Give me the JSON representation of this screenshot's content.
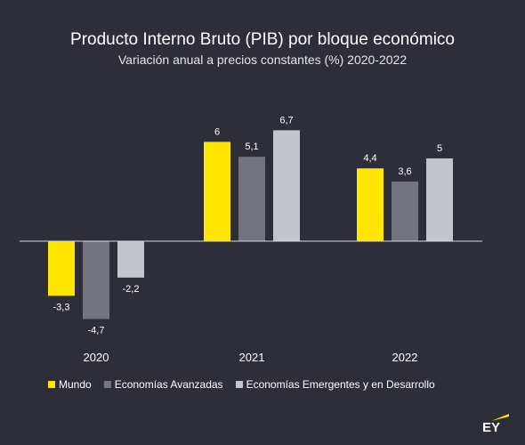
{
  "chart_data": {
    "type": "bar",
    "title": "Producto Interno Bruto (PIB) por bloque económico",
    "subtitle": "Variación anual a precios constantes (%) 2020-2022",
    "categories": [
      "2020",
      "2021",
      "2022"
    ],
    "series": [
      {
        "name": "Mundo",
        "color": "#ffe600",
        "values": [
          -3.3,
          6,
          4.4
        ],
        "labels": [
          "-3,3",
          "6",
          "4,4"
        ]
      },
      {
        "name": "Economías Avanzadas",
        "color": "#747480",
        "values": [
          -4.7,
          5.1,
          3.6
        ],
        "labels": [
          "-4,7",
          "5,1",
          "3,6"
        ]
      },
      {
        "name": "Economías Emergentes y en Desarrollo",
        "color": "#c4c4cd",
        "values": [
          -2.2,
          6.7,
          5
        ],
        "labels": [
          "-2,2",
          "6,7",
          "5"
        ]
      }
    ],
    "ylim": [
      -4.7,
      6.7
    ],
    "grid": false,
    "legend_position": "bottom-left"
  },
  "logo": {
    "text": "EY",
    "accent": "#ffe600"
  }
}
